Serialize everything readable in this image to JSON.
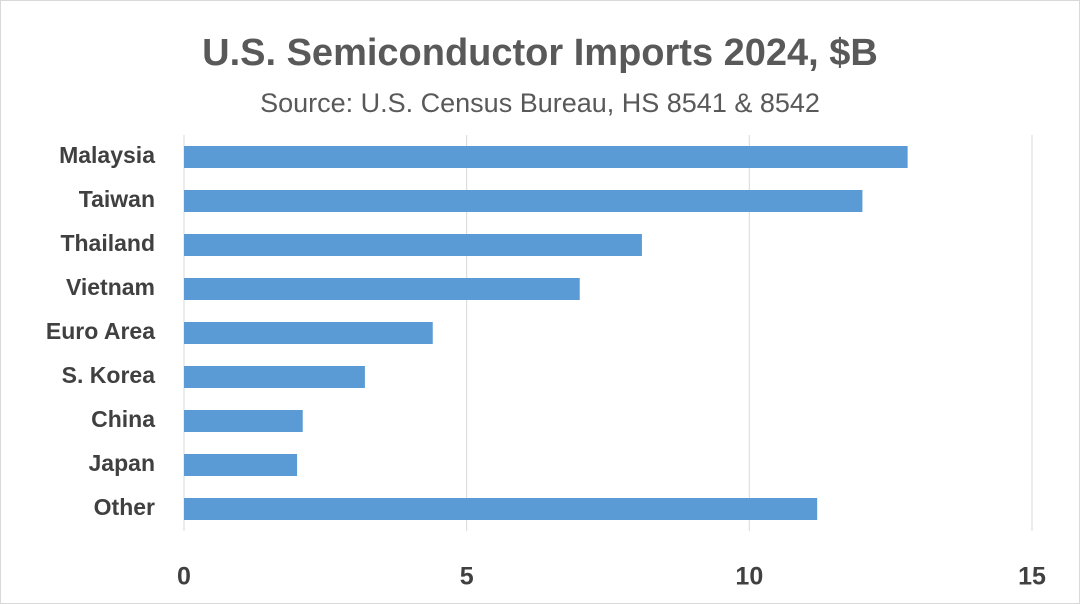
{
  "chart_data": {
    "type": "bar",
    "orientation": "horizontal",
    "title": "U.S. Semiconductor Imports 2024, $B",
    "subtitle": "Source: U.S. Census Bureau, HS 8541 & 8542",
    "categories": [
      "Malaysia",
      "Taiwan",
      "Thailand",
      "Vietnam",
      "Euro Area",
      "S. Korea",
      "China",
      "Japan",
      "Other"
    ],
    "values": [
      12.8,
      12.0,
      8.1,
      7.0,
      4.4,
      3.2,
      2.1,
      2.0,
      11.2
    ],
    "color": "#5b9bd5",
    "xlim": [
      0,
      15
    ],
    "xticks": [
      0,
      5,
      10,
      15
    ],
    "grid": true
  }
}
